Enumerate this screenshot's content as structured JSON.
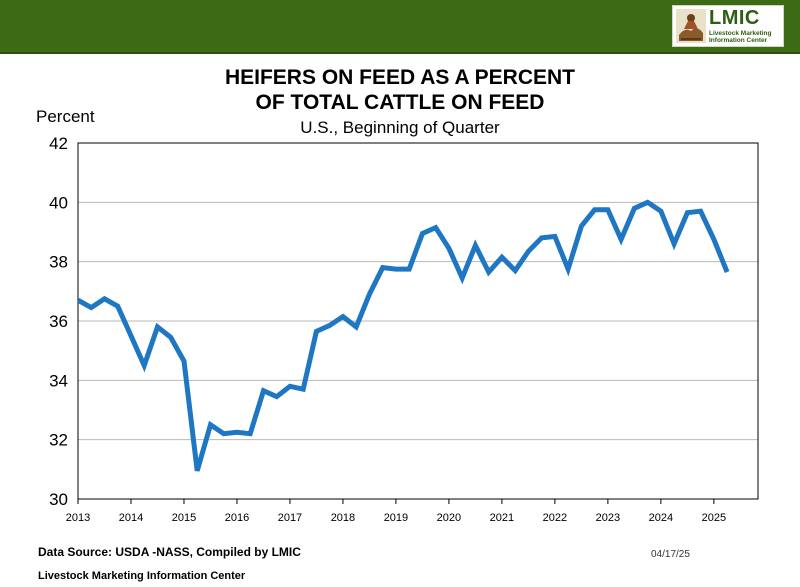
{
  "header": {
    "logo_title": "LMIC",
    "logo_subtitle": "Livestock Marketing Information Center",
    "logo_icon": "ranch-scene-icon",
    "bar_color": "#3d6b15"
  },
  "footer": {
    "source": "Data Source: USDA -NASS, Compiled by LMIC",
    "date": "04/17/25",
    "org": "Livestock Marketing Information Center"
  },
  "chart_data": {
    "type": "line",
    "title_line1": "HEIFERS ON FEED AS A PERCENT",
    "title_line2": "OF TOTAL CATTLE ON FEED",
    "subtitle": "U.S., Beginning of Quarter",
    "ylabel": "Percent",
    "xlabel": "",
    "ylim": [
      30,
      42
    ],
    "yticks": [
      30,
      32,
      34,
      36,
      38,
      40,
      42
    ],
    "xlim": [
      2013,
      2025.833
    ],
    "xticks": [
      "2013",
      "2014",
      "2015",
      "2016",
      "2017",
      "2018",
      "2019",
      "2020",
      "2021",
      "2022",
      "2023",
      "2024",
      "2025"
    ],
    "grid": true,
    "line_color": "#1f77c4",
    "series": [
      {
        "x": [
          "2013 Q1",
          "2013 Q2",
          "2013 Q3",
          "2013 Q4",
          "2014 Q1",
          "2014 Q2",
          "2014 Q3",
          "2014 Q4",
          "2015 Q1",
          "2015 Q2",
          "2015 Q3",
          "2015 Q4",
          "2016 Q1",
          "2016 Q2",
          "2016 Q3",
          "2016 Q4",
          "2017 Q1",
          "2017 Q2",
          "2017 Q3",
          "2017 Q4",
          "2018 Q1",
          "2018 Q2",
          "2018 Q3",
          "2018 Q4",
          "2019 Q1",
          "2019 Q2",
          "2019 Q3",
          "2019 Q4",
          "2020 Q1",
          "2020 Q2",
          "2020 Q3",
          "2020 Q4",
          "2021 Q1",
          "2021 Q2",
          "2021 Q3",
          "2021 Q4",
          "2022 Q1",
          "2022 Q2",
          "2022 Q3",
          "2022 Q4",
          "2023 Q1",
          "2023 Q2",
          "2023 Q3",
          "2023 Q4",
          "2024 Q1",
          "2024 Q2",
          "2024 Q3",
          "2024 Q4",
          "2025 Q1",
          "2025 Q2"
        ],
        "values": [
          36.7,
          36.45,
          36.75,
          36.5,
          35.5,
          34.5,
          35.8,
          35.45,
          34.65,
          30.95,
          32.5,
          32.2,
          32.25,
          32.2,
          33.65,
          33.45,
          33.8,
          33.7,
          35.65,
          35.85,
          36.15,
          35.8,
          36.9,
          37.8,
          37.75,
          37.75,
          38.95,
          39.15,
          38.45,
          37.45,
          38.55,
          37.65,
          38.15,
          37.7,
          38.35,
          38.8,
          38.85,
          37.75,
          39.2,
          39.75,
          39.75,
          38.75,
          39.8,
          40.0,
          39.7,
          38.6,
          39.65,
          39.7,
          38.75,
          37.65
        ]
      }
    ]
  }
}
